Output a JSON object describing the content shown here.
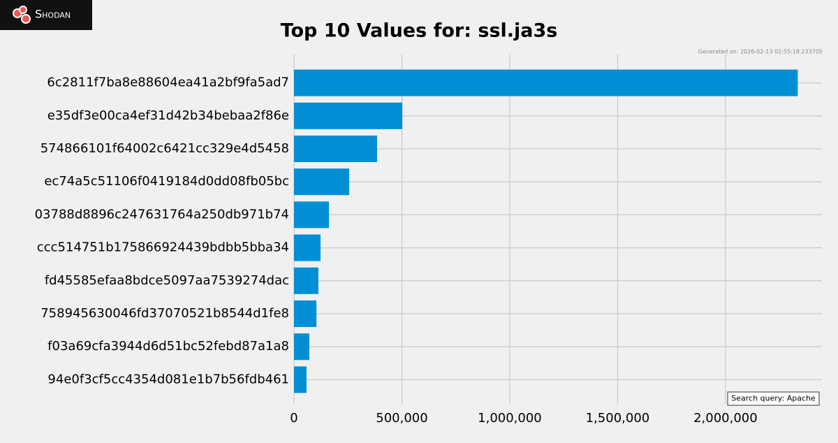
{
  "logo": "Shodan",
  "generated": "Generated on: 2026-02-13 02:55:18.233705",
  "query": "Search query: Apache",
  "chart_data": {
    "type": "barh",
    "title": "Top 10 Values for: ssl.ja3s",
    "categories": [
      "6c2811f7ba8e88604ea41a2bf9fa5ad7",
      "e35df3e00ca4ef31d42b34bebaa2f86e",
      "574866101f64002c6421cc329e4d5458",
      "ec74a5c51106f0419184d0dd08fb05bc",
      "03788d8896c247631764a250db971b74",
      "ccc514751b175866924439bdbb5bba34",
      "fd45585efaa8bdce5097aa7539274dac",
      "758945630046fd37070521b8544d1fe8",
      "f03a69cfa3944d6d51bc52febd87a1a8",
      "94e0f3cf5cc4354d081e1b7b56fdb461"
    ],
    "values": [
      2335000,
      502000,
      385000,
      256000,
      162000,
      123000,
      113000,
      104000,
      71000,
      58000
    ],
    "color": "#008fd5",
    "xlim": [
      0,
      2447000
    ],
    "xticks": [
      0,
      {
        "value": 500000,
        "label": "500,000"
      },
      {
        "value": 1000000,
        "label": "1,000,000"
      },
      {
        "value": 1500000,
        "label": "1,500,000"
      },
      {
        "value": 2000000,
        "label": "2,000,000"
      }
    ],
    "grid": true
  }
}
